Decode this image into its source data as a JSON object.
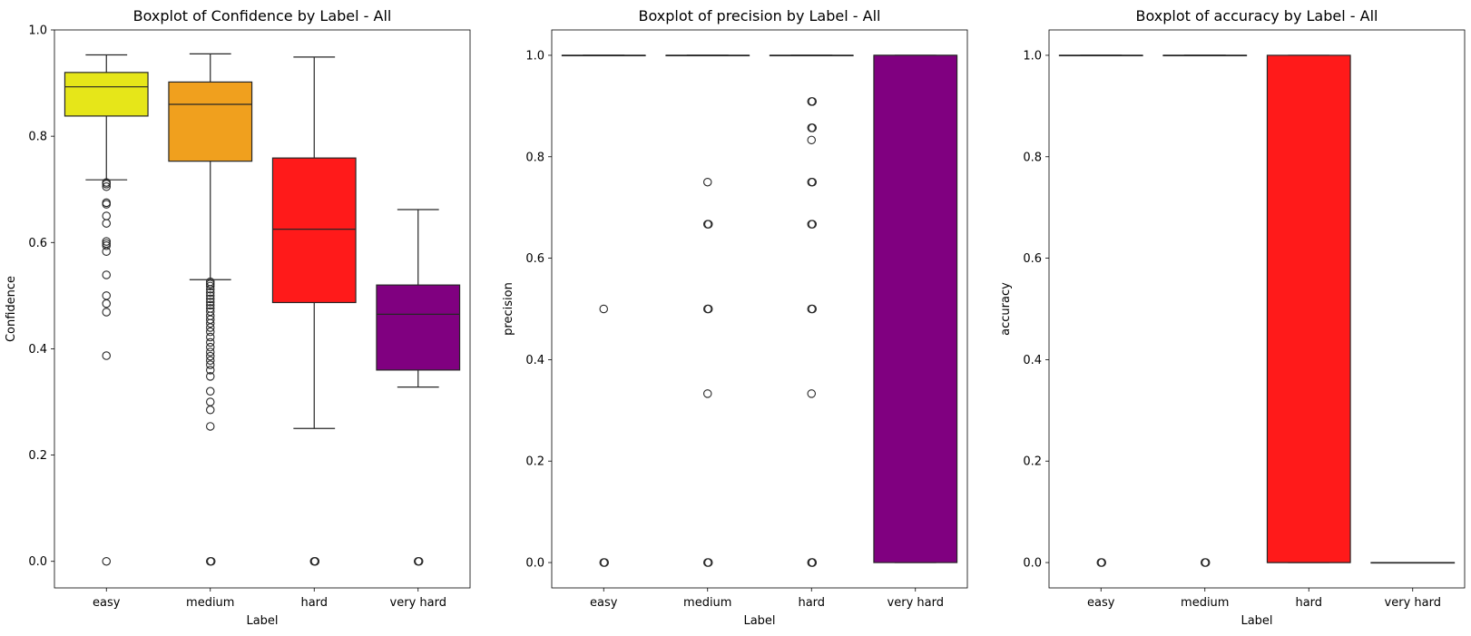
{
  "chart_data": [
    {
      "type": "boxplot",
      "title": "Boxplot of Confidence by Label - All",
      "xlabel": "Label",
      "ylabel": "Confidence",
      "ylim": [
        -0.05,
        1.0
      ],
      "yticks": [
        0.0,
        0.2,
        0.4,
        0.6,
        0.8,
        1.0
      ],
      "ytick_labels": [
        "0.0",
        "0.2",
        "0.4",
        "0.6",
        "0.8",
        "1.0"
      ],
      "categories": [
        "easy",
        "medium",
        "hard",
        "very hard"
      ],
      "colors": [
        "#e6e619",
        "#f0a01e",
        "#ff1a1a",
        "#800080"
      ],
      "boxes": [
        {
          "q1": 0.838,
          "median": 0.893,
          "q3": 0.92,
          "whisker_low": 0.718,
          "whisker_high": 0.953,
          "fliers": [
            0.713,
            0.71,
            0.705,
            0.675,
            0.672,
            0.65,
            0.636,
            0.602,
            0.598,
            0.594,
            0.583,
            0.539,
            0.5,
            0.485,
            0.469,
            0.387,
            0.0
          ]
        },
        {
          "q1": 0.753,
          "median": 0.86,
          "q3": 0.902,
          "whisker_low": 0.53,
          "whisker_high": 0.955,
          "fliers": [
            0.526,
            0.522,
            0.518,
            0.512,
            0.506,
            0.5,
            0.494,
            0.488,
            0.482,
            0.476,
            0.47,
            0.462,
            0.455,
            0.448,
            0.44,
            0.432,
            0.422,
            0.412,
            0.403,
            0.394,
            0.386,
            0.378,
            0.37,
            0.36,
            0.348,
            0.32,
            0.3,
            0.285,
            0.254,
            0.0,
            0.0
          ]
        },
        {
          "q1": 0.487,
          "median": 0.625,
          "q3": 0.759,
          "whisker_low": 0.25,
          "whisker_high": 0.949,
          "fliers": [
            0.0,
            0.0,
            0.0
          ]
        },
        {
          "q1": 0.36,
          "median": 0.465,
          "q3": 0.52,
          "whisker_low": 0.328,
          "whisker_high": 0.662,
          "fliers": [
            0.0,
            0.0
          ]
        }
      ]
    },
    {
      "type": "boxplot",
      "title": "Boxplot of precision by Label - All",
      "xlabel": "Label",
      "ylabel": "precision",
      "ylim": [
        -0.05,
        1.05
      ],
      "yticks": [
        0.0,
        0.2,
        0.4,
        0.6,
        0.8,
        1.0
      ],
      "ytick_labels": [
        "0.0",
        "0.2",
        "0.4",
        "0.6",
        "0.8",
        "1.0"
      ],
      "categories": [
        "easy",
        "medium",
        "hard",
        "very hard"
      ],
      "colors": [
        "#e6e619",
        "#f0a01e",
        "#ff1a1a",
        "#800080"
      ],
      "boxes": [
        {
          "q1": 1.0,
          "median": 1.0,
          "q3": 1.0,
          "whisker_low": 1.0,
          "whisker_high": 1.0,
          "fliers": [
            0.5,
            0.0,
            0.0
          ]
        },
        {
          "q1": 1.0,
          "median": 1.0,
          "q3": 1.0,
          "whisker_low": 1.0,
          "whisker_high": 1.0,
          "fliers": [
            0.75,
            0.667,
            0.667,
            0.5,
            0.5,
            0.333,
            0.0,
            0.0
          ]
        },
        {
          "q1": 1.0,
          "median": 1.0,
          "q3": 1.0,
          "whisker_low": 1.0,
          "whisker_high": 1.0,
          "fliers": [
            0.909,
            0.909,
            0.857,
            0.857,
            0.833,
            0.75,
            0.75,
            0.667,
            0.667,
            0.5,
            0.5,
            0.333,
            0.0,
            0.0,
            0.0
          ]
        },
        {
          "q1": 0.0,
          "median": 1.0,
          "q3": 1.0,
          "whisker_low": 0.0,
          "whisker_high": 1.0,
          "fliers": []
        }
      ]
    },
    {
      "type": "boxplot",
      "title": "Boxplot of accuracy by Label - All",
      "xlabel": "Label",
      "ylabel": "accuracy",
      "ylim": [
        -0.05,
        1.05
      ],
      "yticks": [
        0.0,
        0.2,
        0.4,
        0.6,
        0.8,
        1.0
      ],
      "ytick_labels": [
        "0.0",
        "0.2",
        "0.4",
        "0.6",
        "0.8",
        "1.0"
      ],
      "categories": [
        "easy",
        "medium",
        "hard",
        "very hard"
      ],
      "colors": [
        "#e6e619",
        "#f0a01e",
        "#ff1a1a",
        "#800080"
      ],
      "boxes": [
        {
          "q1": 1.0,
          "median": 1.0,
          "q3": 1.0,
          "whisker_low": 1.0,
          "whisker_high": 1.0,
          "fliers": [
            0.0,
            0.0
          ]
        },
        {
          "q1": 1.0,
          "median": 1.0,
          "q3": 1.0,
          "whisker_low": 1.0,
          "whisker_high": 1.0,
          "fliers": [
            0.0,
            0.0
          ]
        },
        {
          "q1": 0.0,
          "median": 0.0,
          "q3": 1.0,
          "whisker_low": 0.0,
          "whisker_high": 1.0,
          "fliers": []
        },
        {
          "q1": 0.0,
          "median": 0.0,
          "q3": 0.0,
          "whisker_low": 0.0,
          "whisker_high": 0.0,
          "fliers": []
        }
      ]
    }
  ]
}
